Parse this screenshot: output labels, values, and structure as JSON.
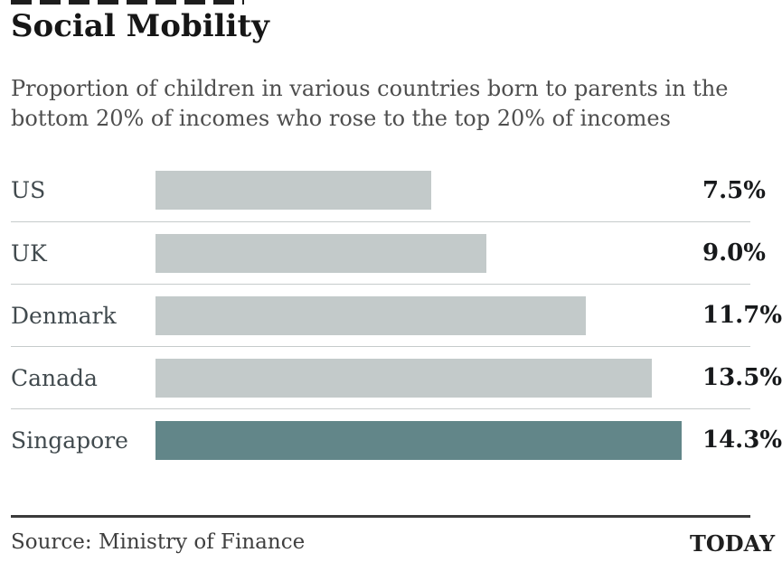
{
  "page": {
    "title": "Social Mobility",
    "subtitle_lines": [
      "Proportion of children in various countries born to parents in the",
      "bottom 20% of incomes who rose to the top 20% of incomes"
    ],
    "footer": {
      "source": "Source: Ministry of Finance",
      "brand": "TODAY"
    }
  },
  "chart_data": {
    "type": "bar",
    "orientation": "horizontal",
    "title": "Social Mobility",
    "subtitle": "Proportion of children in various countries born to parents in the bottom 20% of incomes who rose to the top 20% of incomes",
    "categories": [
      "US",
      "UK",
      "Denmark",
      "Canada",
      "Singapore"
    ],
    "values": [
      7.5,
      9.0,
      11.7,
      13.5,
      14.3
    ],
    "value_labels": [
      "7.5%",
      "9.0%",
      "11.7%",
      "13.5%",
      "14.3%"
    ],
    "unit": "%",
    "xlim": [
      0,
      14.3
    ],
    "grid": false,
    "legend": false,
    "highlight_category": "Singapore",
    "colors": {
      "bar": "#c3caca",
      "highlight": "#628689"
    }
  }
}
